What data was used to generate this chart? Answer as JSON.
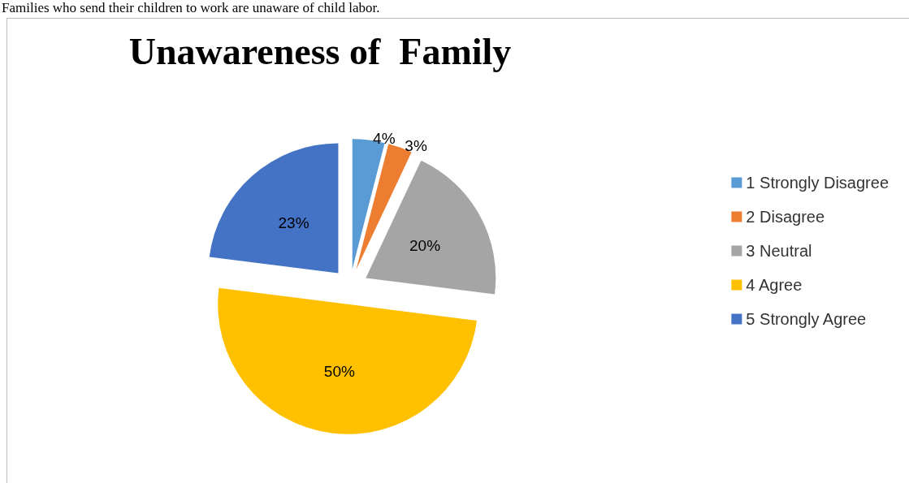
{
  "chart_data": {
    "type": "pie",
    "title": "Unawareness of  Family",
    "annotations": [
      "Families who send their children to work are unaware of child labor."
    ],
    "categories": [
      "1 Strongly Disagree",
      "2 Disagree",
      "3 Neutral",
      "4 Agree",
      "5 Strongly Agree"
    ],
    "values": [
      4,
      3,
      20,
      50,
      23
    ],
    "colors": [
      "#5b9bd5",
      "#ed7d31",
      "#a5a5a5",
      "#ffc000",
      "#4472c4"
    ],
    "value_labels": [
      "4%",
      "3%",
      "20%",
      "50%",
      "23%"
    ],
    "legend": "right"
  }
}
